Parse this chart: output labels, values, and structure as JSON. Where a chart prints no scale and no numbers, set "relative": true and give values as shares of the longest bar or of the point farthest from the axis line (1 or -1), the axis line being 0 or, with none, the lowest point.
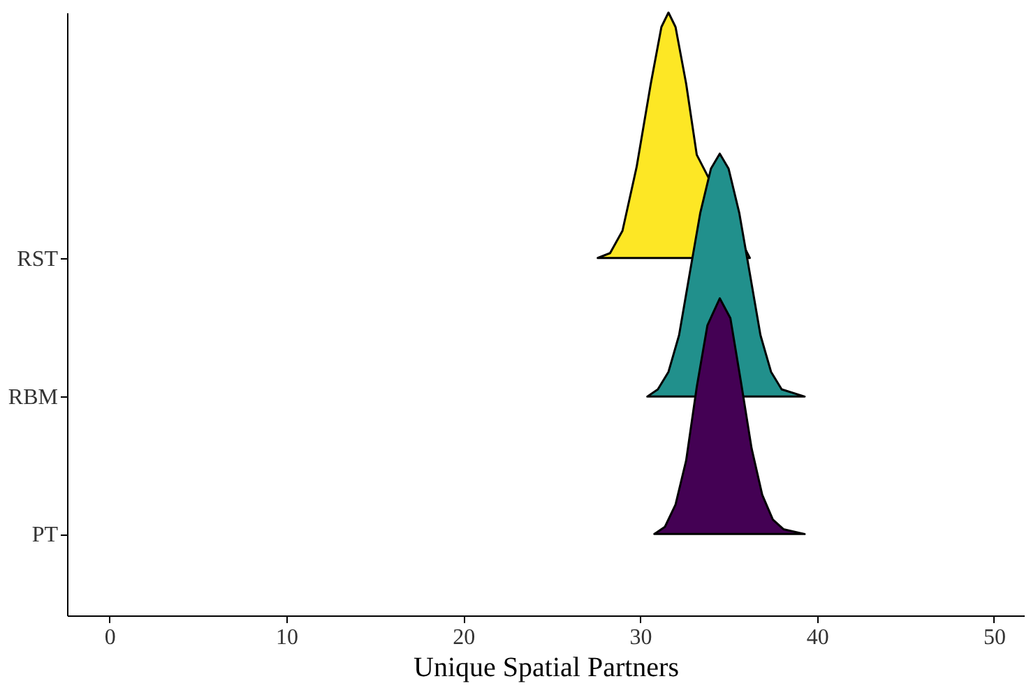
{
  "chart_data": {
    "type": "area",
    "relative": true,
    "xlabel": "Unique Spatial Partners",
    "xlim": [
      -2.4,
      51.7
    ],
    "xticks": [
      0,
      10,
      20,
      30,
      40,
      50
    ],
    "legend": "left",
    "series": [
      {
        "name": "RST",
        "color": "#fde725",
        "x": [
          27.6,
          28.3,
          29.0,
          29.8,
          30.6,
          31.2,
          31.6,
          32.0,
          32.6,
          33.2,
          33.8,
          34.4,
          35.0,
          36.2
        ],
        "values": [
          0.593,
          0.601,
          0.638,
          0.744,
          0.882,
          0.976,
          1.0,
          0.976,
          0.882,
          0.764,
          null,
          null,
          null,
          0.593
        ]
      },
      {
        "name": "RBM",
        "color": "#21908c",
        "x": [
          30.4,
          31.0,
          31.6,
          32.2,
          32.8,
          33.4,
          34.0,
          34.5,
          35.0,
          35.6,
          36.2,
          36.8,
          37.4,
          38.0,
          39.3
        ],
        "values": [
          0.363,
          0.375,
          0.404,
          0.465,
          0.567,
          0.668,
          0.741,
          0.766,
          0.741,
          0.668,
          0.567,
          0.465,
          0.404,
          0.375,
          0.363
        ]
      },
      {
        "name": "PT",
        "color": "#440154",
        "x": [
          30.8,
          31.4,
          32.0,
          32.6,
          33.2,
          33.8,
          34.5,
          35.1,
          35.7,
          36.3,
          36.9,
          37.5,
          38.1,
          39.3
        ],
        "values": [
          0.135,
          0.147,
          0.184,
          0.257,
          0.379,
          0.481,
          0.526,
          0.493,
          0.387,
          0.277,
          0.2,
          0.159,
          0.143,
          0.135
        ]
      }
    ]
  }
}
